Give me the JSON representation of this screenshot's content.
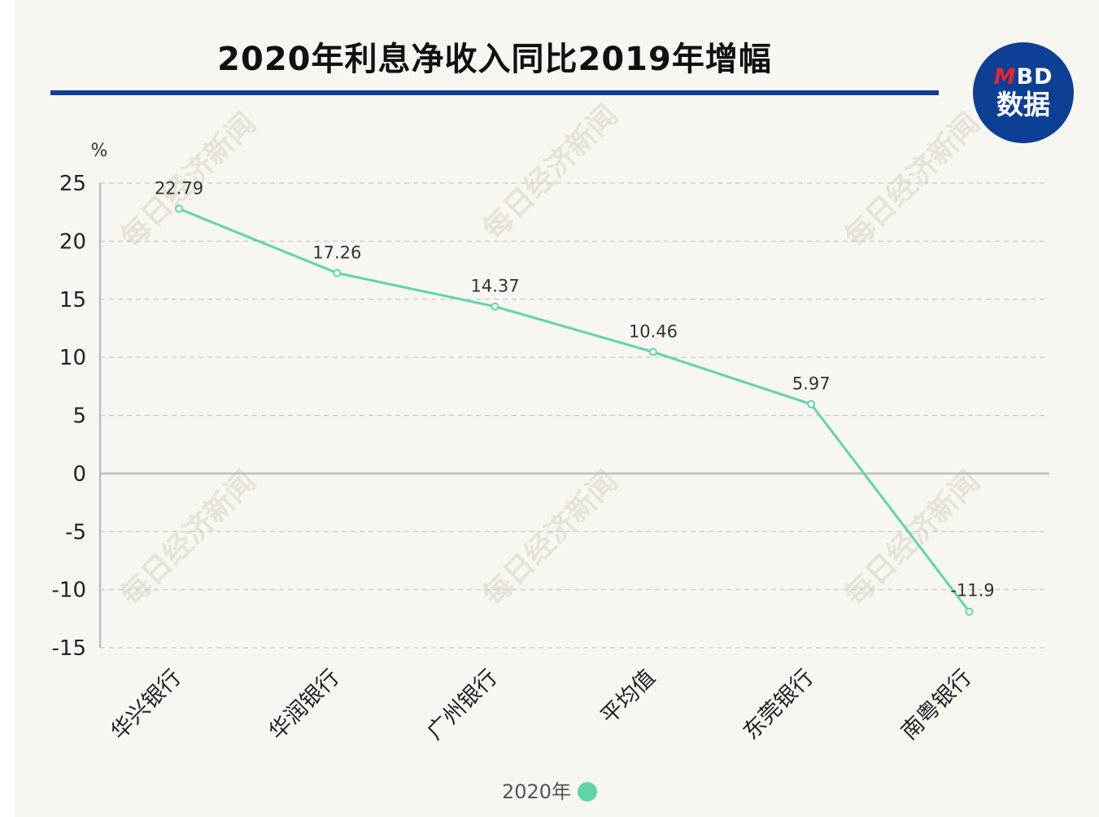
{
  "header": {
    "title": "2020年利息净收入同比2019年增幅",
    "logo_top_mark": "M",
    "logo_top_text": "BD",
    "logo_bottom_text": "数据"
  },
  "watermark_text": "每日经济新闻",
  "colors": {
    "title_rule": "#0d3f95",
    "series": "#5ed6a8",
    "grid": "#c8c8c8",
    "axis": "#bdbdbd"
  },
  "chart_data": {
    "type": "line",
    "title": "2020年利息净收入同比2019年增幅",
    "ylabel": "%",
    "xlabel": "",
    "categories": [
      "华兴银行",
      "华润银行",
      "广州银行",
      "平均值",
      "东莞银行",
      "南粤银行"
    ],
    "series": [
      {
        "name": "2020年",
        "values": [
          22.79,
          17.26,
          14.37,
          10.46,
          5.97,
          -11.9
        ]
      }
    ],
    "data_labels": [
      "22.79",
      "17.26",
      "14.37",
      "10.46",
      "5.97",
      "-11.9"
    ],
    "ylim": [
      -15,
      25
    ],
    "yticks": [
      25,
      20,
      15,
      10,
      5,
      0,
      -5,
      -10,
      -15
    ],
    "grid": true,
    "legend_position": "bottom"
  }
}
